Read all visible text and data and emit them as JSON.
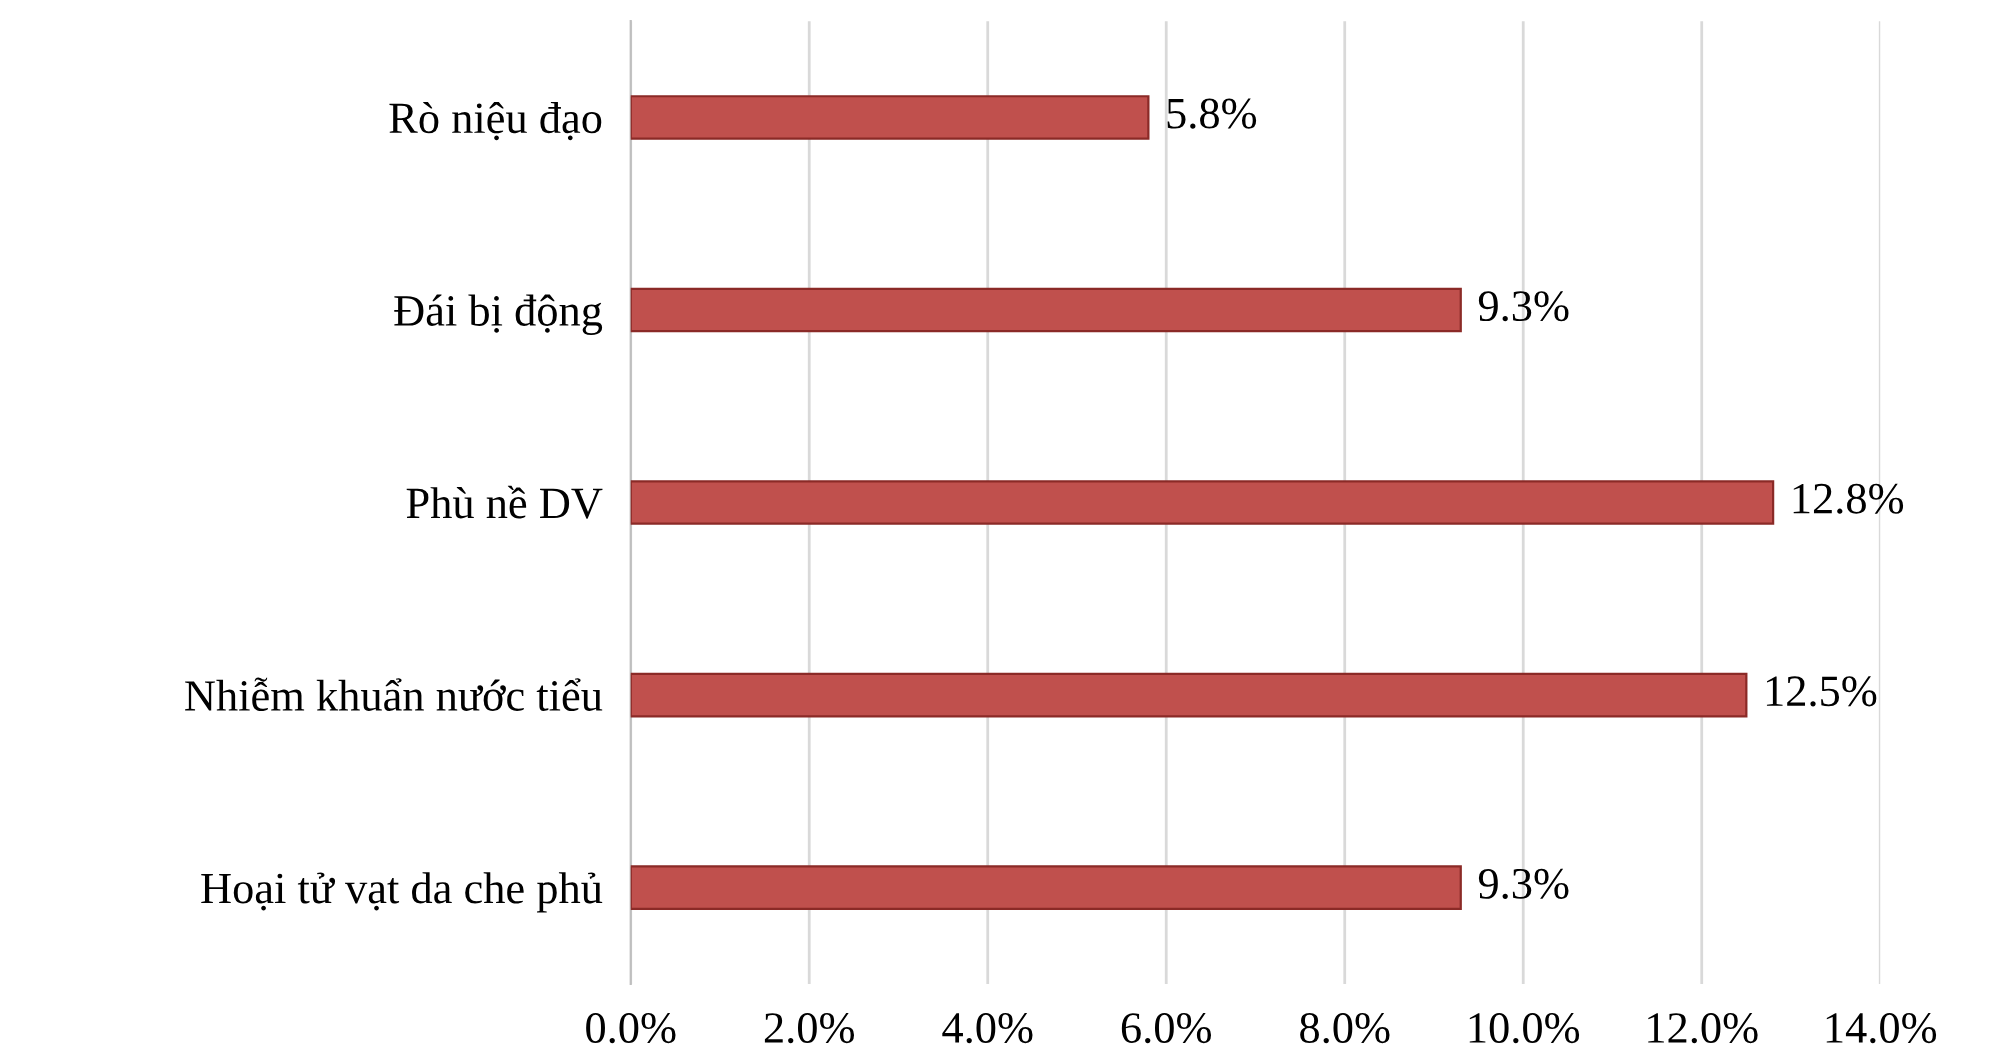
{
  "chart_data": {
    "type": "bar",
    "orientation": "horizontal",
    "categories": [
      "Rò niệu đạo",
      "Đái bị động",
      "Phù nề DV",
      "Nhiễm khuẩn nước tiểu",
      "Hoại tử vạt da che phủ"
    ],
    "values": [
      5.8,
      9.3,
      12.8,
      12.5,
      9.3
    ],
    "value_labels": [
      "5.8%",
      "9.3%",
      "12.8%",
      "12.5%",
      "9.3%"
    ],
    "color": "#c0504d",
    "xlim": [
      0,
      14
    ],
    "xticks": [
      {
        "value": 0,
        "label": "0.0%"
      },
      {
        "value": 2,
        "label": "2.0%"
      },
      {
        "value": 4,
        "label": "4.0%"
      },
      {
        "value": 6,
        "label": "6.0%"
      },
      {
        "value": 8,
        "label": "8.0%"
      },
      {
        "value": 10,
        "label": "10.0%"
      },
      {
        "value": 12,
        "label": "12.0%"
      },
      {
        "value": 14,
        "label": "14.0%"
      }
    ],
    "grid": "x",
    "legend": false
  }
}
